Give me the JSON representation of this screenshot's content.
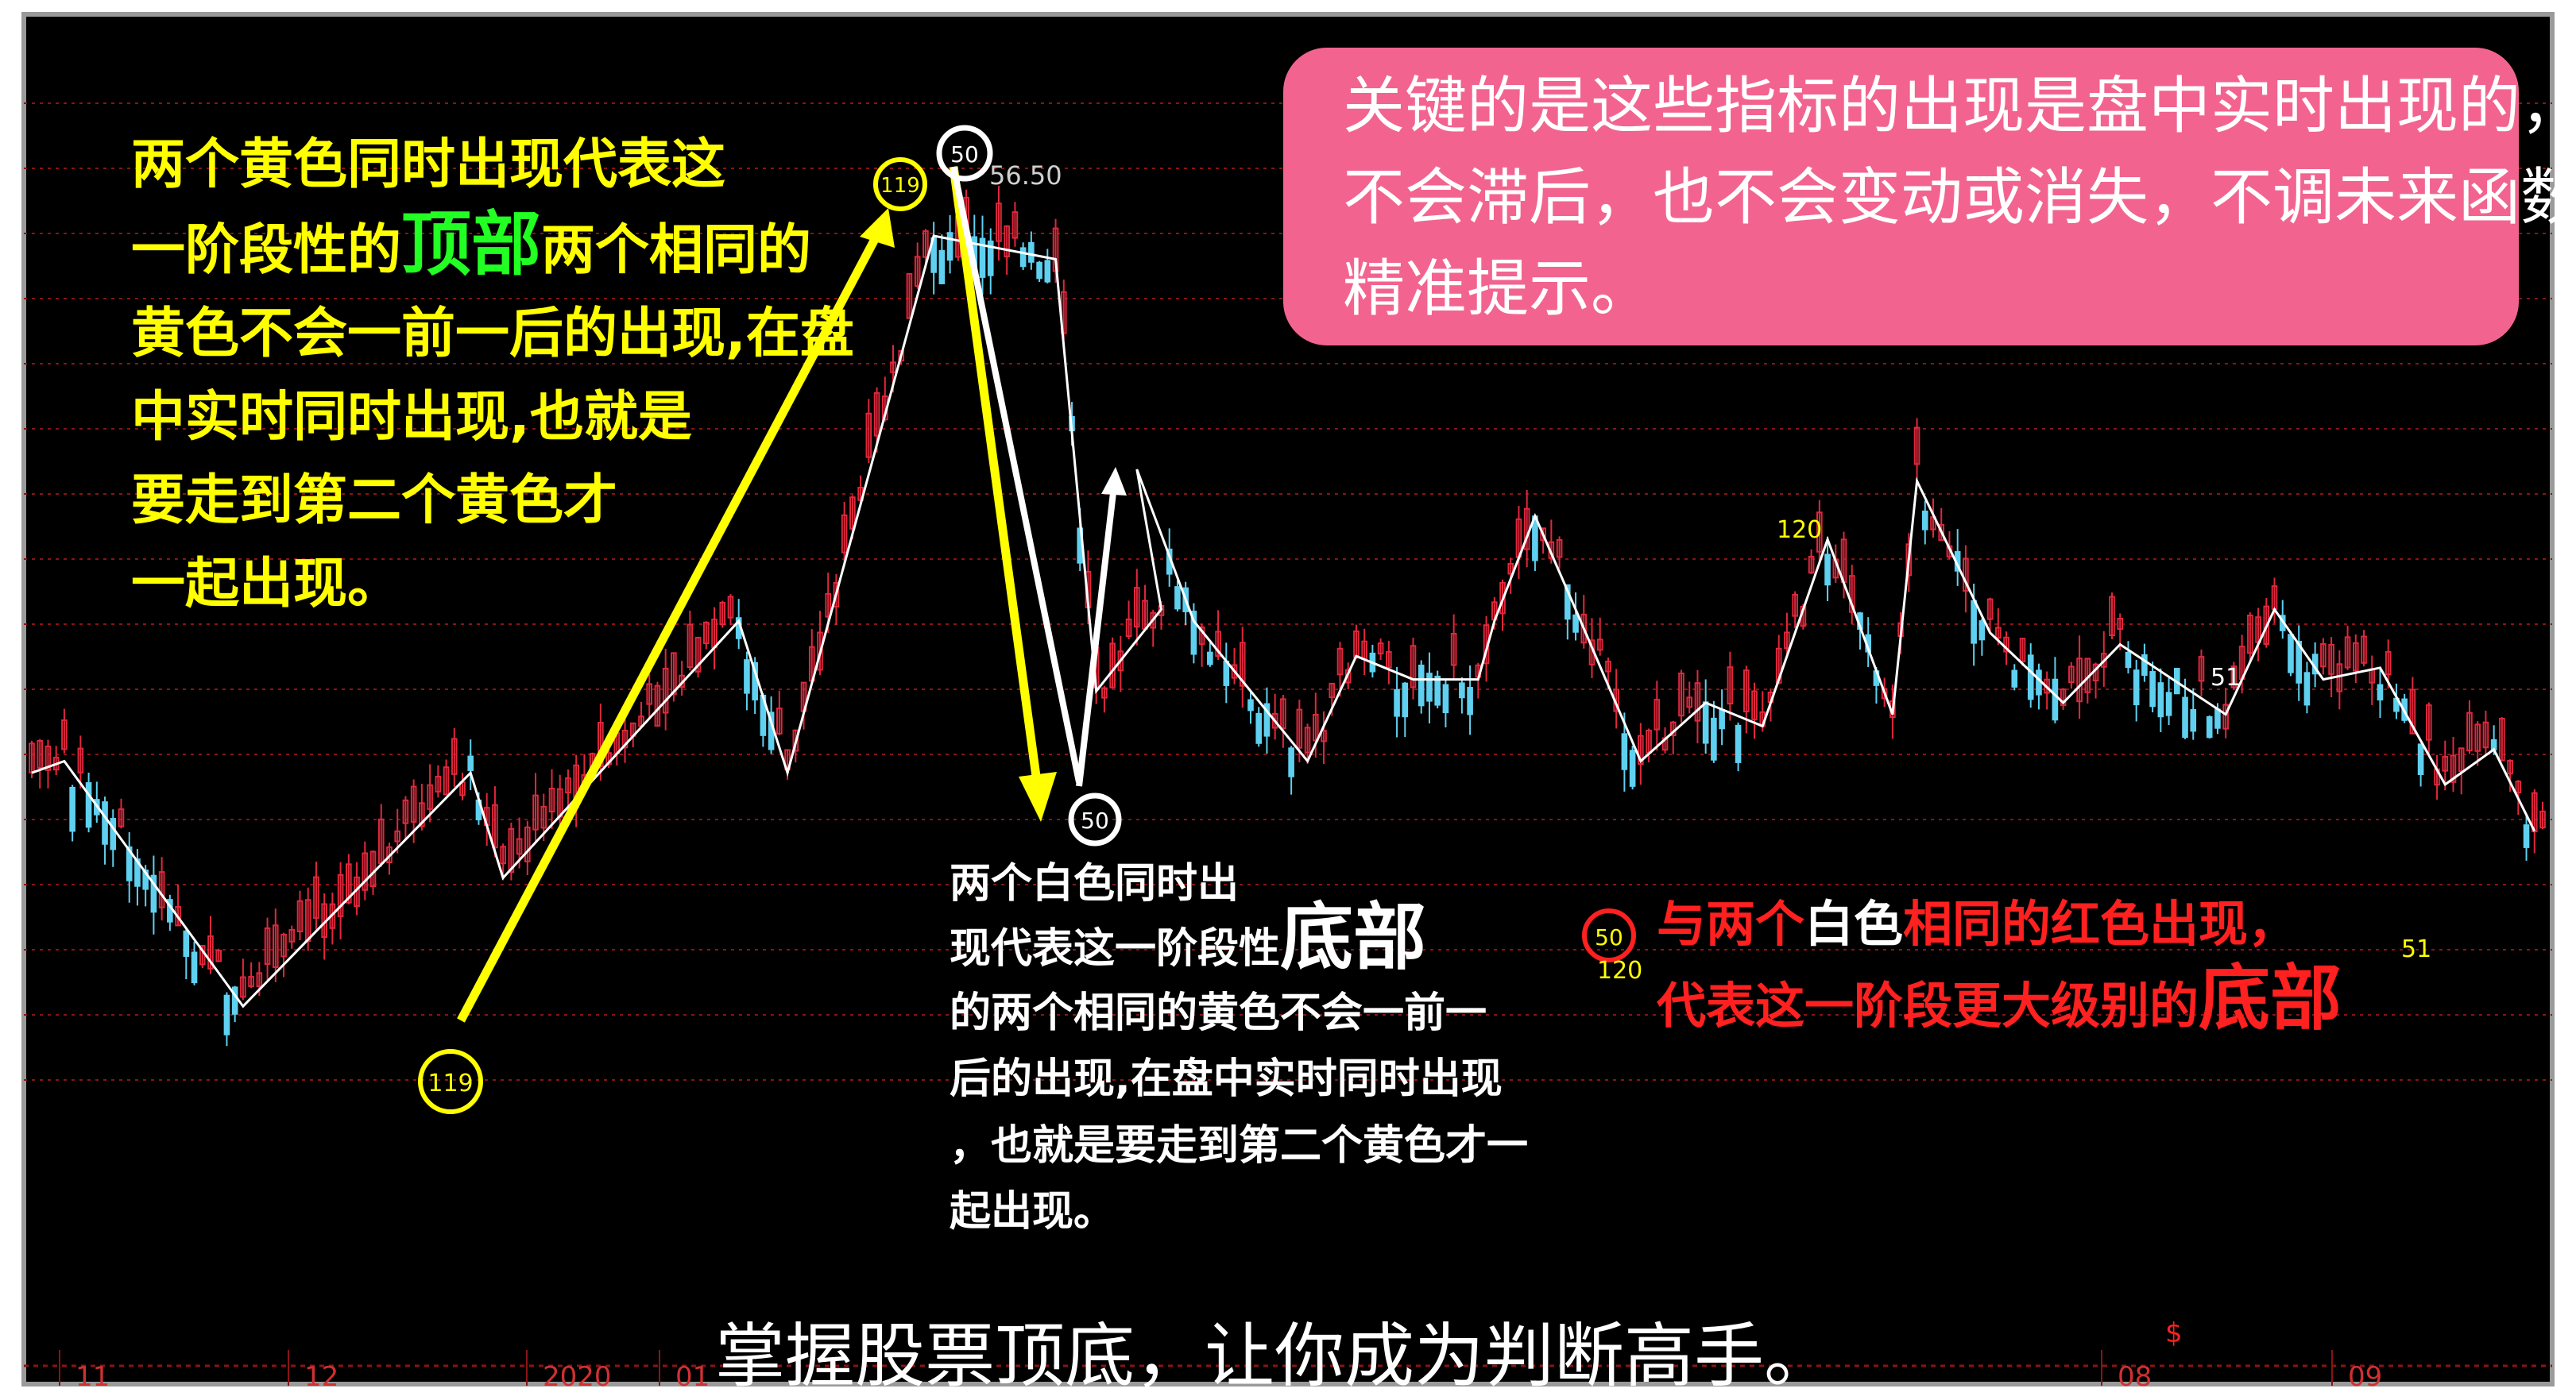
{
  "chart_data": {
    "type": "candlestick",
    "x_tick_labels": [
      "11",
      "12",
      "2020",
      "01",
      "08",
      "09"
    ],
    "zigzag_points": [
      [
        0,
        0.56
      ],
      [
        4,
        0.55
      ],
      [
        26,
        0.76
      ],
      [
        54,
        0.56
      ],
      [
        58,
        0.65
      ],
      [
        87,
        0.43
      ],
      [
        93,
        0.56
      ],
      [
        111,
        0.1
      ],
      [
        126,
        0.12
      ],
      [
        131,
        0.49
      ],
      [
        139,
        0.42
      ],
      [
        136,
        0.3
      ],
      [
        143,
        0.43
      ],
      [
        157,
        0.55
      ],
      [
        163,
        0.46
      ],
      [
        170,
        0.48
      ],
      [
        178,
        0.48
      ],
      [
        180,
        0.43
      ],
      [
        185,
        0.34
      ],
      [
        190,
        0.42
      ],
      [
        198,
        0.55
      ],
      [
        206,
        0.5
      ],
      [
        213,
        0.52
      ],
      [
        221,
        0.36
      ],
      [
        229,
        0.51
      ],
      [
        232,
        0.31
      ],
      [
        241,
        0.44
      ],
      [
        250,
        0.5
      ],
      [
        257,
        0.45
      ],
      [
        270,
        0.51
      ],
      [
        276,
        0.42
      ],
      [
        282,
        0.48
      ],
      [
        289,
        0.47
      ],
      [
        297,
        0.57
      ],
      [
        303,
        0.54
      ],
      [
        308,
        0.61
      ]
    ],
    "annotations": {
      "pink_box": "关键的是这些指标的出现是盘中实时出现的，不会滞后，也不会变动或消失，不调未来函数，精准提示。",
      "yellow_text_part1": "两个黄色同时出现代表这一阶段性的",
      "yellow_text_highlight": "顶部",
      "yellow_text_part2": "两个相同的黄色不会一前一后的出现,在盘中实时同时出现,也就是要走到第二个黄色才一起出现。",
      "white_text_part1": "两个白色同时出现代表这一阶段性",
      "white_text_highlight": "底部",
      "white_text_part2": "的两个相同的黄色不会一前一后的出现,在盘中实时同时出现，也就是要走到第二个黄色才一起出现。",
      "red_text_part1": "与两个白色",
      "red_text_part2": "相同的红色出现，",
      "red_text_part3": "代表这一阶段更大级别的",
      "red_text_highlight": "底部",
      "footer": "掌握股票顶底，让你成为判断高手。"
    },
    "markers": [
      {
        "label": "119",
        "color": "yellow",
        "circled": true
      },
      {
        "label": "119",
        "color": "yellow",
        "circled": true
      },
      {
        "label": "50",
        "color": "white",
        "circled": true
      },
      {
        "label": "50",
        "color": "white",
        "circled": true
      },
      {
        "label": "56.50",
        "color": "white",
        "circled": false
      },
      {
        "label": "120",
        "color": "yellow",
        "circled": false
      },
      {
        "label": "50",
        "color": "yellow",
        "circled": true
      },
      {
        "label": "120",
        "color": "yellow",
        "circled": false
      },
      {
        "label": "51",
        "color": "white",
        "circled": false
      },
      {
        "label": "51",
        "color": "yellow",
        "circled": false
      }
    ],
    "colors": {
      "background": "#000000",
      "up": "#e0283c",
      "down": "#5fd0f0",
      "zigzag": "#ffffff",
      "gridline": "#8a1414",
      "yellow": "#ffff00",
      "pink": "#f2648f",
      "red": "#ff2020"
    }
  }
}
